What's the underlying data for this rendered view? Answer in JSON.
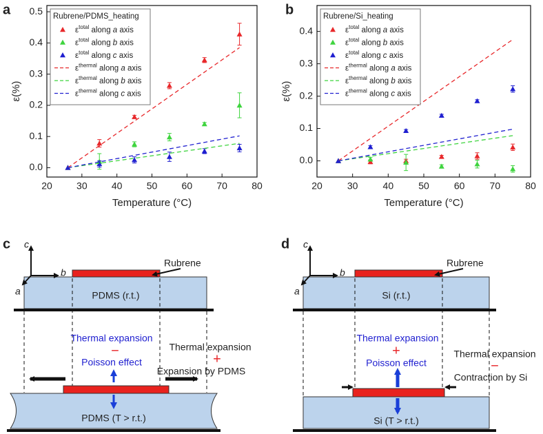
{
  "chart_data": [
    {
      "type": "scatter",
      "panel_label": "a",
      "x_label": "Temperature (°C)",
      "y_label": "ε(%)",
      "legend_title": "Rubrene/PDMS_heating",
      "legend": "upper left",
      "xlim": [
        20,
        80
      ],
      "xticks": [
        20,
        30,
        40,
        50,
        60,
        70,
        80
      ],
      "ylim": [
        -0.03,
        0.52
      ],
      "yticks": [
        {
          "value": 0,
          "label": "0.0"
        },
        {
          "value": 0.1,
          "label": "0.1"
        },
        {
          "value": 0.2,
          "label": "0.2"
        },
        {
          "value": 0.3,
          "label": "0.3"
        },
        {
          "value": 0.4,
          "label": "0.4"
        },
        {
          "value": 0.5,
          "label": "0.5"
        }
      ],
      "series": [
        {
          "name": "εtotal along a axis",
          "color": "#e8282b",
          "kind": "marker",
          "x": [
            26,
            35,
            45,
            55,
            65,
            75
          ],
          "values": [
            0,
            0.078,
            0.163,
            0.263,
            0.345,
            0.428
          ],
          "errors": [
            null,
            0.012,
            0.005,
            0.01,
            0.008,
            0.035
          ]
        },
        {
          "name": "εtotal along b axis",
          "color": "#3fd43f",
          "kind": "marker",
          "x": [
            26,
            35,
            45,
            55,
            65,
            75
          ],
          "values": [
            0,
            0.02,
            0.075,
            0.098,
            0.14,
            0.2
          ],
          "errors": [
            null,
            0.025,
            0.008,
            0.012,
            0.005,
            0.04
          ]
        },
        {
          "name": "εtotal along c axis",
          "color": "#1f1fd0",
          "kind": "marker",
          "x": [
            26,
            35,
            45,
            55,
            65,
            75
          ],
          "values": [
            0,
            0.012,
            0.025,
            0.035,
            0.053,
            0.063
          ],
          "errors": [
            null,
            0.01,
            0.01,
            0.015,
            0.008,
            0.012
          ]
        },
        {
          "name": "εthermal along a axis",
          "color": "#e8282b",
          "kind": "line",
          "x": [
            26,
            75
          ],
          "values": [
            0,
            0.385
          ]
        },
        {
          "name": "εthermal along b axis",
          "color": "#3fd43f",
          "kind": "line",
          "x": [
            26,
            75
          ],
          "values": [
            0,
            0.078
          ]
        },
        {
          "name": "εthermal along c axis",
          "color": "#1f1fd0",
          "kind": "line",
          "x": [
            26,
            75
          ],
          "values": [
            0,
            0.102
          ]
        }
      ]
    },
    {
      "type": "scatter",
      "panel_label": "b",
      "x_label": "Temperature (°C)",
      "y_label": "ε(%)",
      "legend_title": "Rubrene/Si_heating",
      "legend": "upper left",
      "xlim": [
        20,
        80
      ],
      "xticks": [
        20,
        30,
        40,
        50,
        60,
        70,
        80
      ],
      "ylim": [
        -0.05,
        0.48
      ],
      "yticks": [
        {
          "value": 0,
          "label": "0.0"
        },
        {
          "value": 0.1,
          "label": "0.1"
        },
        {
          "value": 0.2,
          "label": "0.2"
        },
        {
          "value": 0.3,
          "label": "0.3"
        },
        {
          "value": 0.4,
          "label": "0.4"
        }
      ],
      "series": [
        {
          "name": "εtotal along a axis",
          "color": "#e8282b",
          "kind": "marker",
          "x": [
            26,
            35,
            45,
            55,
            65,
            75
          ],
          "values": [
            0,
            -0.003,
            0,
            0.013,
            0.015,
            0.042
          ],
          "errors": [
            null,
            0.006,
            0.005,
            0.004,
            0.01,
            0.01
          ]
        },
        {
          "name": "εtotal along b axis",
          "color": "#3fd43f",
          "kind": "marker",
          "x": [
            26,
            35,
            45,
            55,
            65,
            75
          ],
          "values": [
            0,
            0.005,
            -0.005,
            -0.017,
            -0.01,
            -0.025
          ],
          "errors": [
            null,
            0.006,
            0.025,
            0.005,
            0.012,
            0.01
          ]
        },
        {
          "name": "εtotal along c axis",
          "color": "#1f1fd0",
          "kind": "marker",
          "x": [
            26,
            35,
            45,
            55,
            65,
            75
          ],
          "values": [
            0,
            0.043,
            0.093,
            0.14,
            0.185,
            0.222
          ],
          "errors": [
            null,
            0.004,
            0.004,
            0.004,
            0.004,
            0.01
          ]
        },
        {
          "name": "εthermal along a axis",
          "color": "#e8282b",
          "kind": "line",
          "x": [
            26,
            75
          ],
          "values": [
            0,
            0.375
          ]
        },
        {
          "name": "εthermal along b axis",
          "color": "#3fd43f",
          "kind": "line",
          "x": [
            26,
            75
          ],
          "values": [
            0,
            0.078
          ]
        },
        {
          "name": "εthermal along c axis",
          "color": "#1f1fd0",
          "kind": "line",
          "x": [
            26,
            75
          ],
          "values": [
            0,
            0.098
          ]
        }
      ]
    }
  ],
  "diagrams": [
    {
      "panel_label": "c",
      "axes": {
        "c": "c",
        "b": "b",
        "a": "a"
      },
      "film": "Rubrene",
      "substrate_rt": "PDMS (r.t.)",
      "center": {
        "line1": "Thermal expansion",
        "sign": "−",
        "line2": "Poisson effect"
      },
      "side": {
        "line1": "Thermal expansion",
        "sign": "+",
        "line2": "Expansion by PDMS"
      },
      "substrate_hot": "PDMS (T > r.t.)"
    },
    {
      "panel_label": "d",
      "axes": {
        "c": "c",
        "b": "b",
        "a": "a"
      },
      "film": "Rubrene",
      "substrate_rt": "Si (r.t.)",
      "center": {
        "line1": "Thermal expansion",
        "sign": "+",
        "line2": "Poisson effect"
      },
      "side": {
        "line1": "Thermal expansion",
        "sign": "−",
        "line2": "Contraction by Si"
      },
      "substrate_hot": "Si (T > r.t.)"
    }
  ]
}
